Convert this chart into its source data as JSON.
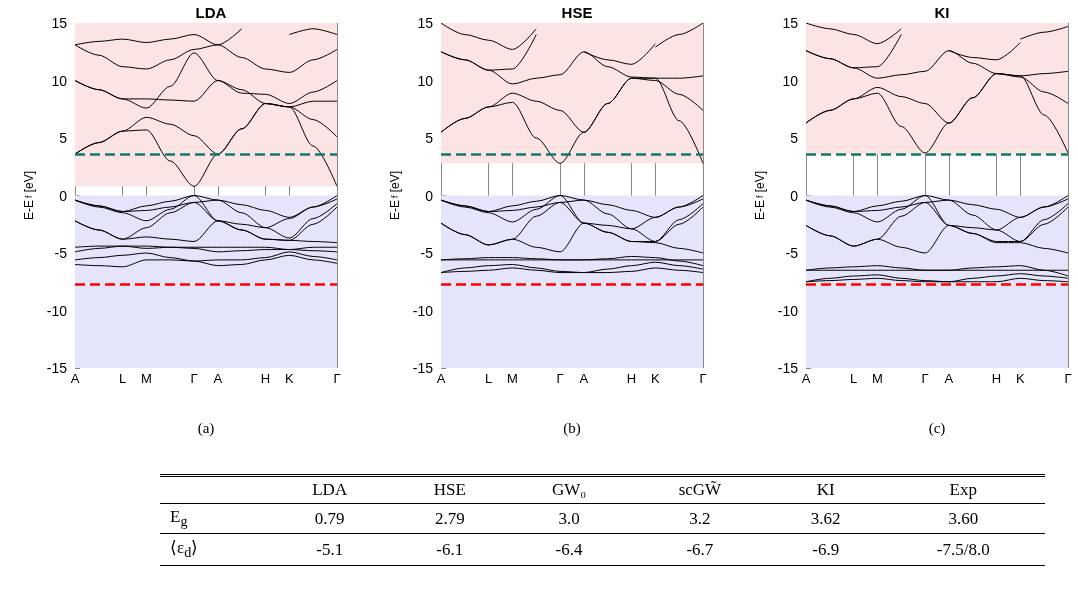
{
  "chart_data": [
    {
      "type": "line",
      "title": "LDA",
      "xlabel": "(a)",
      "ylabel": "E-E$_{f}$ [eV]",
      "categories": [
        "A",
        null,
        "L",
        "M",
        null,
        "Γ",
        "A",
        null,
        "H",
        "K",
        null,
        "Γ"
      ],
      "ylim": [
        -15,
        15
      ],
      "yticks": [
        -15,
        -10,
        -5,
        0,
        5,
        10,
        15
      ],
      "grid": "x",
      "bands": [
        {
          "axis": "y",
          "from": 0.8,
          "to": 15,
          "color": "#fde4e4"
        },
        {
          "axis": "y",
          "from": -15,
          "to": 0,
          "color": "#e4e4fa"
        }
      ],
      "ref_lines": [
        {
          "axis": "y",
          "value": 3.6,
          "color": "#127a6c",
          "line_style": "dashed"
        },
        {
          "axis": "y",
          "value": -7.7,
          "color": "#ff0000",
          "line_style": "dashed"
        }
      ],
      "series": [
        {
          "color": "#000000",
          "values": [
            3.6,
            4.6,
            5.6,
            5.7,
            3.0,
            0.8,
            3.6,
            5.8,
            8.0,
            7.7,
            4.3,
            0.8
          ]
        },
        {
          "color": "#000000",
          "values": [
            3.6,
            4.6,
            5.6,
            6.8,
            6.2,
            5.2,
            3.6,
            5.8,
            8.0,
            7.7,
            6.6,
            5.1
          ]
        },
        {
          "color": "#000000",
          "values": [
            10.0,
            9.2,
            8.4,
            8.4,
            8.3,
            8.2,
            10.0,
            9.2,
            8.0,
            7.7,
            8.2,
            8.2
          ]
        },
        {
          "color": "#000000",
          "values": [
            10.0,
            9.2,
            8.4,
            7.6,
            9.5,
            12.4,
            10.0,
            8.9,
            8.8,
            8.0,
            9.0,
            10.0
          ]
        },
        {
          "color": "#000000",
          "values": [
            13.1,
            12.2,
            11.2,
            11.0,
            11.8,
            12.7,
            13.1,
            12.0,
            11.0,
            10.7,
            11.8,
            12.7
          ]
        },
        {
          "color": "#000000",
          "values": [
            13.1,
            13.4,
            13.6,
            13.3,
            13.6,
            14.0,
            13.1,
            14.5,
            null,
            14.0,
            14.5,
            14.0
          ]
        },
        {
          "color": "#000000",
          "values": [
            -0.4,
            -0.9,
            -1.4,
            -0.9,
            -0.5,
            0,
            -0.4,
            -0.8,
            -1.3,
            -1.9,
            -1.0,
            0
          ]
        },
        {
          "color": "#000000",
          "values": [
            -0.4,
            -0.9,
            -1.4,
            -1.3,
            -1.0,
            -0.6,
            -0.4,
            -1.5,
            -2.8,
            -2.0,
            -1.0,
            -0.3
          ]
        },
        {
          "color": "#000000",
          "values": [
            -0.4,
            -1.0,
            -1.5,
            -2.2,
            -1.2,
            0,
            -2.2,
            -2.5,
            -2.8,
            -3.7,
            -2.0,
            -0.7
          ]
        },
        {
          "color": "#000000",
          "values": [
            -2.2,
            -3.0,
            -3.8,
            -2.8,
            -1.5,
            -0.6,
            -2.2,
            -3.0,
            -3.8,
            -3.9,
            -2.5,
            -1.0
          ]
        },
        {
          "color": "#000000",
          "values": [
            -2.2,
            -3.0,
            -3.8,
            -3.6,
            -3.8,
            -4.0,
            -2.2,
            -3.0,
            -3.8,
            -3.9,
            -4.0,
            -4.1
          ]
        },
        {
          "color": "#000000",
          "values": [
            -4.5,
            -4.4,
            -4.4,
            -4.4,
            -4.5,
            -4.5,
            -4.5,
            -4.5,
            -4.5,
            -4.7,
            -4.5,
            -4.5
          ]
        },
        {
          "color": "#000000",
          "values": [
            -4.9,
            -4.6,
            -4.4,
            -4.6,
            -4.5,
            -4.6,
            -4.9,
            -4.8,
            -4.7,
            -4.7,
            -4.8,
            -4.9
          ]
        },
        {
          "color": "#000000",
          "values": [
            -5.6,
            -5.4,
            -5.2,
            -5.0,
            -5.4,
            -5.7,
            -5.6,
            -5.6,
            -5.4,
            -4.9,
            -5.3,
            -5.6
          ]
        },
        {
          "color": "#000000",
          "values": [
            -6.0,
            -6.1,
            -6.2,
            -5.6,
            -5.6,
            -5.7,
            -6.1,
            -6.0,
            -5.6,
            -5.2,
            -5.6,
            -5.9
          ]
        }
      ]
    },
    {
      "type": "line",
      "title": "HSE",
      "xlabel": "(b)",
      "ylabel": "E-E$_{f}$ [eV]",
      "categories": [
        "A",
        null,
        "L",
        "M",
        null,
        "Γ",
        "A",
        null,
        "H",
        "K",
        null,
        "Γ"
      ],
      "ylim": [
        -15,
        15
      ],
      "yticks": [
        -15,
        -10,
        -5,
        0,
        5,
        10,
        15
      ],
      "grid": "x",
      "bands": [
        {
          "axis": "y",
          "from": 2.8,
          "to": 15,
          "color": "#fde4e4"
        },
        {
          "axis": "y",
          "from": -15,
          "to": 0,
          "color": "#e4e4fa"
        }
      ],
      "ref_lines": [
        {
          "axis": "y",
          "value": 3.6,
          "color": "#127a6c",
          "line_style": "dashed"
        },
        {
          "axis": "y",
          "value": -7.7,
          "color": "#ff0000",
          "line_style": "dashed"
        }
      ],
      "series": [
        {
          "color": "#000000",
          "values": [
            5.5,
            6.7,
            7.7,
            8.1,
            5.0,
            2.8,
            5.5,
            8.0,
            10.2,
            10.2,
            6.5,
            2.8
          ]
        },
        {
          "color": "#000000",
          "values": [
            5.5,
            6.7,
            7.7,
            8.9,
            8.2,
            7.4,
            5.5,
            8.0,
            10.2,
            10.0,
            8.8,
            7.4
          ]
        },
        {
          "color": "#000000",
          "values": [
            12.5,
            11.8,
            10.9,
            9.7,
            10.2,
            10.5,
            12.5,
            11.2,
            10.3,
            10.2,
            10.2,
            10.4
          ]
        },
        {
          "color": "#000000",
          "values": [
            12.5,
            11.8,
            10.9,
            11.0,
            14.0,
            null,
            12.5,
            11.8,
            11.4,
            13.2,
            null,
            null
          ]
        },
        {
          "color": "#000000",
          "values": [
            15.0,
            14.0,
            13.5,
            12.7,
            14.5,
            null,
            null,
            null,
            null,
            12.9,
            14.0,
            15.0
          ]
        },
        {
          "color": "#000000",
          "values": [
            -0.4,
            -0.9,
            -1.4,
            -0.9,
            -0.5,
            0,
            -0.4,
            -0.8,
            -1.3,
            -1.9,
            -1.0,
            0
          ]
        },
        {
          "color": "#000000",
          "values": [
            -0.4,
            -0.9,
            -1.4,
            -1.3,
            -1.0,
            -0.6,
            -0.4,
            -1.6,
            -2.9,
            -1.9,
            -1.0,
            -0.3
          ]
        },
        {
          "color": "#000000",
          "values": [
            -0.4,
            -1.0,
            -1.5,
            -2.3,
            -1.2,
            0,
            -2.4,
            -2.6,
            -2.9,
            -4.0,
            -2.1,
            -0.7
          ]
        },
        {
          "color": "#000000",
          "values": [
            -2.4,
            -3.4,
            -4.3,
            -3.8,
            -1.8,
            -0.6,
            -2.4,
            -3.2,
            -4.0,
            -4.0,
            -2.5,
            -1.0
          ]
        },
        {
          "color": "#000000",
          "values": [
            -2.4,
            -3.4,
            -4.3,
            -3.8,
            -4.5,
            -4.9,
            -2.4,
            -3.2,
            -4.0,
            -4.1,
            -4.6,
            -5.0
          ]
        },
        {
          "color": "#000000",
          "values": [
            -5.6,
            -5.6,
            -5.6,
            -5.6,
            -5.6,
            -5.6,
            -5.6,
            -5.6,
            -5.6,
            -5.6,
            -5.6,
            -5.6
          ]
        },
        {
          "color": "#000000",
          "values": [
            -5.6,
            -5.5,
            -5.4,
            -5.4,
            -5.5,
            -5.6,
            -5.6,
            -5.5,
            -5.3,
            -5.4,
            -5.7,
            -6.1
          ]
        },
        {
          "color": "#000000",
          "values": [
            -6.7,
            -6.3,
            -6.1,
            -6.0,
            -6.3,
            -6.6,
            -6.7,
            -6.4,
            -6.1,
            -5.8,
            -6.1,
            -6.4
          ]
        },
        {
          "color": "#000000",
          "values": [
            -6.7,
            -6.6,
            -6.5,
            -6.3,
            -6.5,
            -6.7,
            -6.7,
            -6.7,
            -6.6,
            -6.3,
            -6.5,
            -6.7
          ]
        }
      ]
    },
    {
      "type": "line",
      "title": "KI",
      "xlabel": "(c)",
      "ylabel": "E-E$_{f}$ [eV]",
      "categories": [
        "A",
        null,
        "L",
        "M",
        null,
        "Γ",
        "A",
        null,
        "H",
        "K",
        null,
        "Γ"
      ],
      "ylim": [
        -15,
        15
      ],
      "yticks": [
        -15,
        -10,
        -5,
        0,
        5,
        10,
        15
      ],
      "grid": "x",
      "bands": [
        {
          "axis": "y",
          "from": 3.6,
          "to": 15,
          "color": "#fde4e4"
        },
        {
          "axis": "y",
          "from": -15,
          "to": 0,
          "color": "#e4e4fa"
        }
      ],
      "ref_lines": [
        {
          "axis": "y",
          "value": 3.6,
          "color": "#127a6c",
          "line_style": "dashed"
        },
        {
          "axis": "y",
          "value": -7.7,
          "color": "#ff0000",
          "line_style": "dashed"
        }
      ],
      "series": [
        {
          "color": "#000000",
          "values": [
            6.3,
            7.4,
            8.4,
            8.9,
            6.0,
            3.7,
            6.3,
            8.5,
            10.6,
            10.4,
            7.0,
            3.7
          ]
        },
        {
          "color": "#000000",
          "values": [
            6.3,
            7.4,
            8.4,
            9.4,
            8.6,
            8.0,
            6.3,
            8.5,
            10.6,
            10.3,
            9.0,
            8.0
          ]
        },
        {
          "color": "#000000",
          "values": [
            12.6,
            11.9,
            11.1,
            10.2,
            10.5,
            10.8,
            12.6,
            11.5,
            10.6,
            10.4,
            10.6,
            10.8
          ]
        },
        {
          "color": "#000000",
          "values": [
            12.6,
            11.9,
            11.1,
            11.2,
            14.0,
            null,
            12.6,
            12.0,
            11.8,
            13.3,
            null,
            null
          ]
        },
        {
          "color": "#000000",
          "values": [
            15.0,
            14.5,
            14.0,
            13.2,
            14.5,
            null,
            null,
            null,
            null,
            13.6,
            14.2,
            14.7
          ]
        },
        {
          "color": "#000000",
          "values": [
            -0.4,
            -0.9,
            -1.4,
            -0.9,
            -0.5,
            0,
            -0.4,
            -0.8,
            -1.2,
            -1.9,
            -1.0,
            0
          ]
        },
        {
          "color": "#000000",
          "values": [
            -0.4,
            -0.9,
            -1.4,
            -1.3,
            -1.0,
            -0.6,
            -0.4,
            -1.7,
            -3.0,
            -1.9,
            -1.0,
            -0.3
          ]
        },
        {
          "color": "#000000",
          "values": [
            -0.4,
            -1.0,
            -1.5,
            -2.3,
            -1.2,
            0,
            -2.6,
            -2.8,
            -3.0,
            -4.0,
            -2.1,
            -0.7
          ]
        },
        {
          "color": "#000000",
          "values": [
            -2.6,
            -3.5,
            -4.4,
            -3.8,
            -1.8,
            -0.6,
            -2.6,
            -3.3,
            -4.0,
            -4.0,
            -2.5,
            -1.0
          ]
        },
        {
          "color": "#000000",
          "values": [
            -2.6,
            -3.5,
            -4.4,
            -3.8,
            -4.5,
            -5.0,
            -2.6,
            -3.3,
            -4.1,
            -4.1,
            -4.6,
            -5.0
          ]
        },
        {
          "color": "#000000",
          "values": [
            -6.5,
            -6.5,
            -6.5,
            -6.5,
            -6.5,
            -6.5,
            -6.5,
            -6.5,
            -6.5,
            -6.5,
            -6.5,
            -6.5
          ]
        },
        {
          "color": "#000000",
          "values": [
            -6.5,
            -6.3,
            -6.2,
            -6.1,
            -6.3,
            -6.5,
            -6.5,
            -6.3,
            -6.2,
            -6.1,
            -6.5,
            -7.0
          ]
        },
        {
          "color": "#000000",
          "values": [
            -7.5,
            -7.2,
            -7.0,
            -6.9,
            -7.2,
            -7.4,
            -7.5,
            -7.2,
            -7.0,
            -6.8,
            -7.0,
            -7.2
          ]
        },
        {
          "color": "#000000",
          "values": [
            -7.5,
            -7.4,
            -7.3,
            -7.2,
            -7.4,
            -7.5,
            -7.5,
            -7.5,
            -7.5,
            -7.2,
            -7.4,
            -7.5
          ]
        }
      ]
    },
    {
      "type": "other",
      "categories": [
        "LDA",
        "HSE",
        "GW₀",
        "scGW̃",
        "KI",
        "Exp"
      ],
      "y_categories": [
        "E$_{g}$",
        "⟨ε$_{d}$⟩"
      ],
      "cell_labels": [
        [
          "0.79",
          "2.79",
          "3.0",
          "3.2",
          "3.62",
          "3.60"
        ],
        [
          "-5.1",
          "-6.1",
          "-6.4",
          "-6.7",
          "-6.9",
          "-7.5/8.0"
        ]
      ]
    }
  ]
}
